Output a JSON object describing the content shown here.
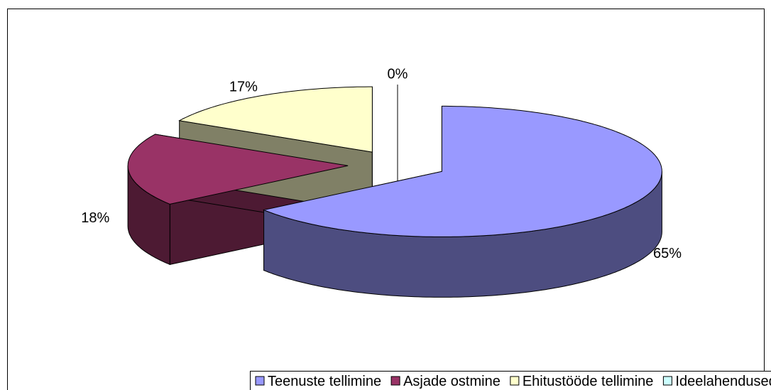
{
  "chart_data": {
    "type": "pie3d",
    "categories": [
      "Teenuste tellimine",
      "Asjade ostmine",
      "Ehitustööde tellimine",
      "Ideelahendused"
    ],
    "values": [
      65,
      18,
      17,
      0
    ],
    "value_labels": [
      "65%",
      "18%",
      "17%",
      "0%"
    ],
    "colors": [
      "#9999ff",
      "#993366",
      "#ffffcc",
      "#ccffff"
    ],
    "side_colors": [
      "#4d4d80",
      "#4d1a33",
      "#808066",
      "#668080"
    ],
    "legend": "bottom"
  }
}
